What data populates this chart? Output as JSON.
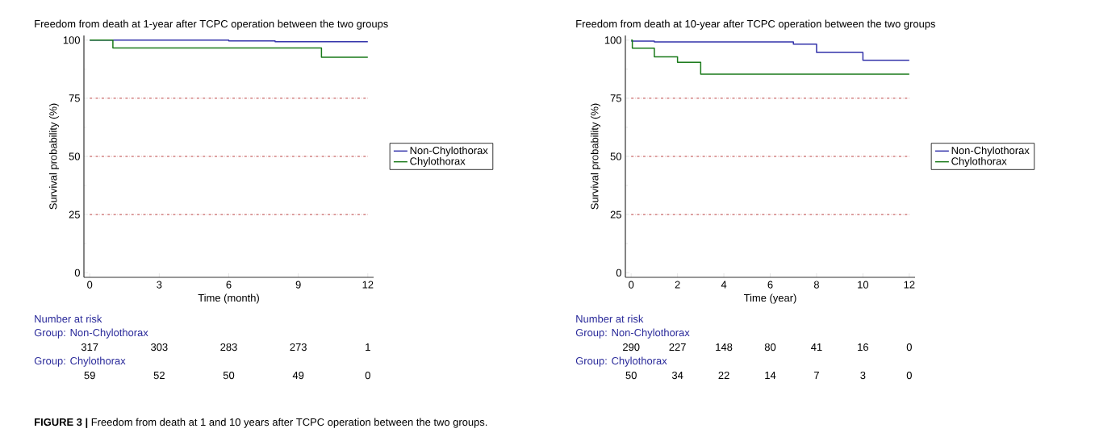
{
  "chart_data": [
    {
      "type": "step",
      "title": "Freedom from death at 1-year after TCPC operation between the two groups",
      "xlabel": "Time (month)",
      "ylabel": "Survival probability (%)",
      "series": [
        {
          "name": "Non-Chylothorax",
          "color": "#3333aa",
          "x": [
            0,
            6,
            8,
            12
          ],
          "values": [
            100,
            99.7,
            99.3,
            99.3
          ]
        },
        {
          "name": "Chylothorax",
          "color": "#1a7a1a",
          "x": [
            0,
            1,
            10,
            12
          ],
          "values": [
            100,
            96.6,
            92.6,
            92.6
          ]
        }
      ],
      "xlim": [
        -0.25,
        12.25
      ],
      "ylim": [
        -2,
        102
      ],
      "xticks": [
        0,
        3,
        6,
        9,
        12
      ],
      "yticks": [
        0,
        25,
        50,
        75,
        100
      ],
      "ref_lines": [
        {
          "axis": "y",
          "value": 25,
          "color": "#aa1111",
          "line_style": "dashed"
        },
        {
          "axis": "y",
          "value": 50,
          "color": "#aa1111",
          "line_style": "dashed"
        },
        {
          "axis": "y",
          "value": 75,
          "color": "#aa1111",
          "line_style": "dashed"
        }
      ],
      "legend": "right",
      "annotations": [
        "Number at risk",
        "Group: Non-Chylothorax",
        "317",
        "303",
        "283",
        "273",
        "1",
        "Group: Chylothorax",
        "59",
        "52",
        "50",
        "49",
        "0",
        "**FIGURE 3 |** Freedom from death at 1 and 10 years after TCPC operation between the two groups."
      ]
    },
    {
      "type": "step",
      "title": "Freedom from death at 10-year after TCPC operation between the two groups",
      "xlabel": "Time (year)",
      "ylabel": "Survival probability (%)",
      "series": [
        {
          "name": "Non-Chylothorax",
          "color": "#3333aa",
          "x": [
            0,
            1,
            7,
            8,
            10,
            12
          ],
          "values": [
            99.6,
            99.2,
            98.3,
            94.7,
            91.3,
            91.3
          ]
        },
        {
          "name": "Chylothorax",
          "color": "#1a7a1a",
          "x": [
            0,
            0.05,
            1,
            2,
            3,
            12
          ],
          "values": [
            100,
            96.5,
            92.8,
            90.5,
            85.4,
            85.4
          ]
        }
      ],
      "xlim": [
        -0.25,
        12.25
      ],
      "ylim": [
        -2,
        102
      ],
      "xticks": [
        0,
        2,
        4,
        6,
        8,
        10,
        12
      ],
      "yticks": [
        0,
        25,
        50,
        75,
        100
      ],
      "ref_lines": [
        {
          "axis": "y",
          "value": 25,
          "color": "#aa1111",
          "line_style": "dashed"
        },
        {
          "axis": "y",
          "value": 50,
          "color": "#aa1111",
          "line_style": "dashed"
        },
        {
          "axis": "y",
          "value": 75,
          "color": "#aa1111",
          "line_style": "dashed"
        }
      ],
      "legend": "right",
      "annotations": [
        "Number at risk",
        "Group: Non-Chylothorax",
        "290",
        "227",
        "148",
        "80",
        "41",
        "16",
        "0",
        "Group: Chylothorax",
        "50",
        "34",
        "22",
        "14",
        "7",
        "3",
        "0"
      ]
    }
  ]
}
